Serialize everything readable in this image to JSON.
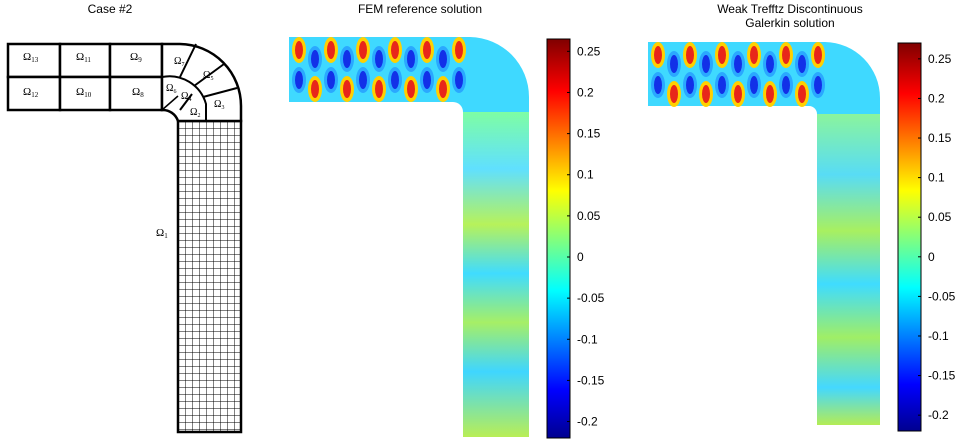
{
  "panels": {
    "mesh": {
      "title": "Case #2"
    },
    "fem": {
      "title": "FEM reference solution"
    },
    "wtdg": {
      "title_line1": "Weak Trefftz Discontinuous",
      "title_line2": "Galerkin solution"
    }
  },
  "subdomains": {
    "omega13": {
      "sym": "Ω",
      "sub": "13"
    },
    "omega11": {
      "sym": "Ω",
      "sub": "11"
    },
    "omega9": {
      "sym": "Ω",
      "sub": "9"
    },
    "omega12": {
      "sym": "Ω",
      "sub": "12"
    },
    "omega10": {
      "sym": "Ω",
      "sub": "10"
    },
    "omega8": {
      "sym": "Ω",
      "sub": "8"
    },
    "omega7": {
      "sym": "Ω",
      "sub": "7"
    },
    "omega5": {
      "sym": "Ω",
      "sub": "5"
    },
    "omega6": {
      "sym": "Ω",
      "sub": "6"
    },
    "omega4": {
      "sym": "Ω",
      "sub": "4"
    },
    "omega3": {
      "sym": "Ω",
      "sub": "3"
    },
    "omega2": {
      "sym": "Ω",
      "sub": "2"
    },
    "omega1": {
      "sym": "Ω",
      "sub": "1"
    }
  },
  "colorbar_fem": {
    "ticks": [
      "0.25",
      "0.2",
      "0.15",
      "0.1",
      "0.05",
      "0",
      "-0.05",
      "-0.1",
      "-0.15",
      "-0.2"
    ],
    "tick_values": [
      0.25,
      0.2,
      0.15,
      0.1,
      0.05,
      0,
      -0.05,
      -0.1,
      -0.15,
      -0.2
    ],
    "range": [
      -0.22,
      0.265
    ]
  },
  "colorbar_wtdg": {
    "ticks": [
      "0.25",
      "0.2",
      "0.15",
      "0.1",
      "0.05",
      "0",
      "-0.05",
      "-0.1",
      "-0.15",
      "-0.2"
    ],
    "tick_values": [
      0.25,
      0.2,
      0.15,
      0.1,
      0.05,
      0,
      -0.05,
      -0.1,
      -0.15,
      -0.2
    ],
    "range": [
      -0.22,
      0.27
    ]
  },
  "colormap": "jet"
}
